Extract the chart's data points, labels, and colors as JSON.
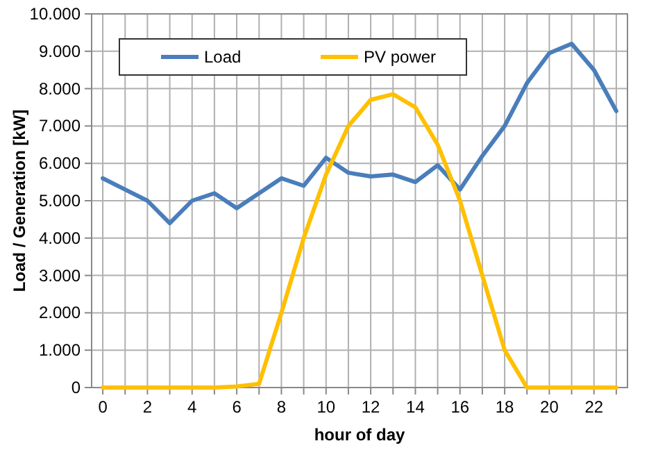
{
  "chart_data": {
    "type": "line",
    "xlabel": "hour of day",
    "ylabel": "Load / Generation [kW]",
    "x": [
      0,
      1,
      2,
      3,
      4,
      5,
      6,
      7,
      8,
      9,
      10,
      11,
      12,
      13,
      14,
      15,
      16,
      17,
      18,
      19,
      20,
      21,
      22,
      23
    ],
    "series": [
      {
        "name": "Load",
        "color": "#4a7ebb",
        "values": [
          5600,
          5300,
          5000,
          4400,
          5000,
          5200,
          4800,
          5200,
          5600,
          5400,
          6150,
          5750,
          5650,
          5700,
          5500,
          5950,
          5300,
          6200,
          7000,
          8150,
          8950,
          9200,
          8500,
          7400
        ]
      },
      {
        "name": "PV power",
        "color": "#ffc000",
        "values": [
          0,
          0,
          0,
          0,
          0,
          0,
          30,
          100,
          2000,
          4000,
          5700,
          7000,
          7700,
          7850,
          7500,
          6500,
          5000,
          3000,
          1000,
          0,
          0,
          0,
          0,
          0
        ]
      }
    ],
    "xlim": [
      -0.5,
      23.5
    ],
    "xticks": [
      0,
      {
        "value": 1,
        "label": null
      },
      2,
      {
        "value": 3,
        "label": null
      },
      4,
      {
        "value": 5,
        "label": null
      },
      6,
      {
        "value": 7,
        "label": null
      },
      8,
      {
        "value": 9,
        "label": null
      },
      10,
      {
        "value": 11,
        "label": null
      },
      12,
      {
        "value": 13,
        "label": null
      },
      14,
      {
        "value": 15,
        "label": null
      },
      16,
      {
        "value": 17,
        "label": null
      },
      18,
      {
        "value": 19,
        "label": null
      },
      20,
      {
        "value": 21,
        "label": null
      },
      22,
      {
        "value": 23,
        "label": null
      }
    ],
    "ylim": [
      0,
      10000
    ],
    "yticks": [
      0,
      {
        "value": 1000,
        "label": "1.000"
      },
      {
        "value": 2000,
        "label": "2.000"
      },
      {
        "value": 3000,
        "label": "3.000"
      },
      {
        "value": 4000,
        "label": "4.000"
      },
      {
        "value": 5000,
        "label": "5.000"
      },
      {
        "value": 6000,
        "label": "6.000"
      },
      {
        "value": 7000,
        "label": "7.000"
      },
      {
        "value": 8000,
        "label": "8.000"
      },
      {
        "value": 9000,
        "label": "9.000"
      },
      {
        "value": 10000,
        "label": "10.000"
      }
    ],
    "grid": true,
    "legend": "top left",
    "line_style": "solid",
    "marker": "none"
  }
}
